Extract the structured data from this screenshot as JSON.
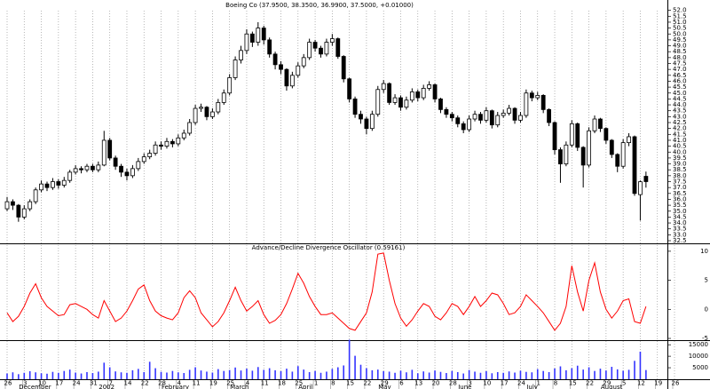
{
  "chart_data": [
    {
      "type": "candlestick",
      "title": "Boeing Co (37.9500, 38.3500, 36.9900, 37.5000, +0.01000)",
      "color_up": "#ffffff",
      "color_down": "#000000",
      "edge_color": "#000000",
      "open": [
        35.2,
        35.8,
        35.5,
        34.5,
        35.2,
        35.8,
        36.8,
        37.3,
        37.0,
        37.5,
        37.2,
        37.6,
        38.3,
        38.6,
        38.5,
        38.8,
        38.5,
        38.9,
        41.0,
        39.5,
        38.8,
        38.3,
        38.0,
        38.6,
        39.2,
        39.6,
        39.9,
        40.6,
        40.5,
        40.9,
        40.7,
        41.2,
        41.6,
        42.5,
        43.7,
        43.8,
        43.0,
        43.4,
        44.2,
        45.0,
        46.3,
        47.8,
        48.6,
        50.0,
        49.3,
        50.5,
        49.5,
        48.3,
        47.4,
        47.0,
        45.6,
        46.5,
        47.3,
        48.0,
        49.3,
        48.8,
        48.3,
        49.3,
        49.6,
        48.1,
        46.2,
        44.5,
        43.2,
        42.8,
        42.0,
        43.2,
        45.3,
        45.8,
        44.2,
        44.6,
        43.8,
        44.4,
        45.1,
        44.6,
        45.4,
        45.7,
        44.5,
        43.6,
        43.2,
        42.9,
        42.4,
        41.9,
        42.8,
        43.2,
        42.7,
        43.5,
        42.3,
        43.1,
        43.3,
        43.7,
        42.7,
        43.1,
        45.0,
        44.6,
        44.8,
        43.6,
        42.5,
        40.2,
        39.0,
        40.6,
        42.4,
        40.4,
        38.9,
        41.8,
        42.8,
        42.0,
        41.0,
        39.8,
        38.8,
        40.8,
        41.3,
        36.4,
        37.95,
        null,
        null,
        null,
        null,
        null
      ],
      "high": [
        36.2,
        36.0,
        35.6,
        35.5,
        36.0,
        37.0,
        37.6,
        37.5,
        37.8,
        37.7,
        37.9,
        38.5,
        38.9,
        38.8,
        39.0,
        39.0,
        39.2,
        41.8,
        41.2,
        39.7,
        39.0,
        38.6,
        38.9,
        39.5,
        39.9,
        40.2,
        40.9,
        40.9,
        41.2,
        41.1,
        41.5,
        41.9,
        42.8,
        44.0,
        44.1,
        43.9,
        43.7,
        44.5,
        45.3,
        46.6,
        48.1,
        49.0,
        50.4,
        50.2,
        51.0,
        50.7,
        49.7,
        48.5,
        47.7,
        47.1,
        46.8,
        47.6,
        48.3,
        49.6,
        49.5,
        49.0,
        49.6,
        50.0,
        49.7,
        48.2,
        46.3,
        44.7,
        43.5,
        43.0,
        43.5,
        45.6,
        46.1,
        45.9,
        44.9,
        44.8,
        44.7,
        45.4,
        45.3,
        45.7,
        46.0,
        45.8,
        44.6,
        43.8,
        43.4,
        43.1,
        42.6,
        43.1,
        43.5,
        43.4,
        43.8,
        43.6,
        43.4,
        43.6,
        44.0,
        43.8,
        43.4,
        45.3,
        45.2,
        45.1,
        44.9,
        43.7,
        42.6,
        40.4,
        40.9,
        42.7,
        42.5,
        40.5,
        42.1,
        43.1,
        42.9,
        42.1,
        41.1,
        39.9,
        41.1,
        41.6,
        41.4,
        37.6,
        38.35,
        null,
        null,
        null,
        null,
        null
      ],
      "low": [
        35.0,
        35.1,
        34.1,
        34.3,
        35.0,
        35.6,
        36.6,
        36.7,
        36.8,
        36.9,
        37.0,
        37.4,
        38.1,
        38.2,
        38.3,
        38.3,
        38.3,
        38.8,
        39.3,
        38.5,
        37.9,
        37.6,
        37.8,
        38.4,
        39.0,
        39.4,
        39.7,
        40.2,
        40.3,
        40.4,
        40.5,
        41.0,
        41.4,
        42.3,
        43.4,
        42.7,
        42.8,
        43.2,
        44.0,
        44.8,
        46.1,
        47.5,
        48.3,
        48.9,
        49.0,
        49.1,
        48.0,
        47.0,
        46.6,
        45.2,
        45.4,
        46.3,
        47.1,
        47.8,
        48.5,
        48.0,
        48.1,
        49.0,
        47.9,
        45.9,
        44.2,
        42.9,
        42.4,
        41.5,
        41.8,
        43.0,
        45.0,
        44.0,
        44.0,
        43.5,
        43.6,
        44.2,
        44.3,
        44.4,
        45.2,
        44.2,
        43.3,
        42.9,
        42.6,
        42.1,
        41.6,
        41.7,
        42.6,
        42.4,
        42.5,
        42.0,
        42.1,
        42.9,
        43.1,
        42.4,
        42.5,
        42.9,
        44.3,
        44.4,
        43.3,
        42.2,
        39.8,
        37.4,
        38.8,
        40.4,
        40.1,
        37.0,
        38.7,
        41.6,
        41.7,
        40.7,
        39.5,
        38.3,
        38.6,
        40.5,
        36.3,
        34.2,
        36.99,
        null,
        null,
        null,
        null,
        null
      ],
      "close": [
        35.8,
        35.5,
        34.5,
        35.2,
        35.8,
        36.8,
        37.3,
        37.0,
        37.5,
        37.2,
        37.6,
        38.3,
        38.6,
        38.5,
        38.8,
        38.5,
        38.9,
        41.0,
        39.5,
        38.8,
        38.3,
        38.0,
        38.6,
        39.2,
        39.6,
        39.9,
        40.6,
        40.5,
        40.9,
        40.7,
        41.2,
        41.6,
        42.5,
        43.7,
        43.8,
        43.0,
        43.4,
        44.2,
        45.0,
        46.3,
        47.8,
        48.6,
        50.0,
        49.3,
        50.5,
        49.5,
        48.3,
        47.4,
        47.0,
        45.6,
        46.5,
        47.3,
        48.0,
        49.3,
        48.8,
        48.3,
        49.3,
        49.6,
        48.1,
        46.2,
        44.5,
        43.2,
        42.8,
        42.0,
        43.2,
        45.3,
        45.8,
        44.2,
        44.6,
        43.8,
        44.4,
        45.1,
        44.6,
        45.4,
        45.7,
        44.5,
        43.6,
        43.2,
        42.9,
        42.4,
        41.9,
        42.8,
        43.2,
        42.7,
        43.5,
        42.3,
        43.1,
        43.3,
        43.7,
        42.7,
        43.1,
        45.0,
        44.6,
        44.8,
        43.6,
        42.5,
        40.2,
        39.0,
        40.6,
        42.4,
        40.4,
        38.9,
        41.8,
        42.8,
        42.0,
        41.0,
        39.8,
        38.8,
        40.8,
        41.3,
        36.5,
        37.49,
        37.5,
        null,
        null,
        null,
        null,
        null
      ],
      "ylim": [
        32.5,
        52.5
      ],
      "yticks": [
        32.5,
        {
          "value": 33,
          "label": "33.0"
        },
        33.5,
        {
          "value": 34,
          "label": "34.0"
        },
        34.5,
        {
          "value": 35,
          "label": "35.0"
        },
        35.5,
        {
          "value": 36,
          "label": "36.0"
        },
        36.5,
        {
          "value": 37,
          "label": "37.0"
        },
        37.5,
        {
          "value": 38,
          "label": "38.0"
        },
        38.5,
        {
          "value": 39,
          "label": "39.0"
        },
        39.5,
        {
          "value": 40,
          "label": "40.0"
        },
        40.5,
        {
          "value": 41,
          "label": "41.0"
        },
        41.5,
        {
          "value": 42,
          "label": "42.0"
        },
        42.5,
        {
          "value": 43,
          "label": "43.0"
        },
        43.5,
        {
          "value": 44,
          "label": "44.0"
        },
        44.5,
        {
          "value": 45,
          "label": "45.0"
        },
        45.5,
        {
          "value": 46,
          "label": "46.0"
        },
        46.5,
        {
          "value": 47,
          "label": "47.0"
        },
        47.5,
        {
          "value": 48,
          "label": "48.0"
        },
        48.5,
        {
          "value": 49,
          "label": "49.0"
        },
        49.5,
        {
          "value": 50,
          "label": "50.0"
        },
        50.5,
        {
          "value": 51,
          "label": "51.0"
        },
        51.5,
        {
          "value": 52,
          "label": "52.0"
        }
      ],
      "grid": true
    },
    {
      "type": "line",
      "title": "Advance/Decline Divergence Oscillator (0.59161)",
      "color": "#ff0000",
      "values": [
        -0.6,
        -2.1,
        -1.2,
        0.5,
        2.8,
        4.4,
        2.0,
        0.5,
        -0.3,
        -1.1,
        -0.9,
        0.8,
        1.0,
        0.5,
        0,
        -0.9,
        -1.5,
        1.5,
        -0.3,
        -2.1,
        -1.5,
        -0.3,
        1.5,
        3.5,
        4.2,
        1.5,
        -0.3,
        -1.1,
        -1.5,
        -1.8,
        -0.6,
        2.0,
        3.2,
        2.0,
        -0.6,
        -1.8,
        -3.0,
        -2.1,
        -0.6,
        1.5,
        3.8,
        1.5,
        -0.3,
        0.5,
        1.5,
        -0.9,
        -2.4,
        -1.9,
        -0.9,
        1.0,
        3.5,
        6.2,
        4.5,
        2.2,
        0.5,
        -0.9,
        -0.9,
        -0.6,
        -1.5,
        -2.4,
        -3.3,
        -3.6,
        -2.1,
        -0.6,
        3.0,
        9.5,
        9.7,
        5.0,
        1.0,
        -1.5,
        -2.9,
        -1.8,
        -0.3,
        1.0,
        0.5,
        -1.2,
        -1.8,
        -0.6,
        1.0,
        0.5,
        -0.9,
        0.5,
        2.2,
        0.5,
        1.5,
        2.8,
        2.5,
        1.0,
        -0.9,
        -0.6,
        0.5,
        2.5,
        1.5,
        0.5,
        -0.6,
        -2.1,
        -3.6,
        -2.4,
        0.5,
        7.5,
        3.0,
        -0.3,
        5.0,
        8.0,
        3.0,
        0,
        -1.5,
        -0.3,
        1.5,
        1.8,
        -2.1,
        -2.4,
        0.5,
        null,
        null,
        null,
        null,
        null
      ],
      "ylim": [
        -5.3,
        10.9
      ],
      "yticks": [
        10,
        5,
        0,
        -5
      ],
      "grid": true
    },
    {
      "type": "bar",
      "color": "#3333ff",
      "values": [
        2500,
        3000,
        2200,
        2800,
        3500,
        3000,
        2600,
        2400,
        3200,
        2800,
        3600,
        4200,
        2900,
        2500,
        3100,
        2700,
        3300,
        7200,
        5200,
        3400,
        3000,
        2800,
        3900,
        4500,
        3100,
        7600,
        4800,
        3200,
        2900,
        3600,
        3000,
        2700,
        4100,
        5200,
        3800,
        3300,
        2900,
        4400,
        3600,
        4000,
        5100,
        3800,
        4600,
        3700,
        5300,
        4100,
        4800,
        3900,
        3500,
        4600,
        3300,
        5700,
        4200,
        3100,
        3600,
        2800,
        3300,
        4500,
        5200,
        6000,
        17200,
        10200,
        6300,
        4800,
        3900,
        4200,
        3500,
        3300,
        2800,
        3700,
        3000,
        4100,
        2600,
        3400,
        2900,
        3800,
        3200,
        2700,
        3600,
        3100,
        2500,
        4000,
        3300,
        2800,
        3500,
        2600,
        3100,
        2800,
        3400,
        2900,
        3700,
        3200,
        3000,
        4400,
        3600,
        3100,
        4700,
        5600,
        3900,
        4800,
        5900,
        4200,
        5200,
        3600,
        4600,
        3800,
        5400,
        4300,
        3700,
        4100,
        8000,
        12000,
        4000,
        null,
        null,
        null,
        null,
        null
      ],
      "ylim": [
        0,
        17000
      ],
      "yticks": [
        15000,
        10000,
        5000
      ],
      "grid": true,
      "categories": [
        "26",
        null,
        null,
        "3",
        null,
        null,
        "10",
        null,
        null,
        "17",
        null,
        null,
        "24",
        null,
        null,
        "31",
        null,
        null,
        "7",
        null,
        null,
        "14",
        null,
        null,
        "22",
        null,
        null,
        "28",
        null,
        null,
        "4",
        null,
        null,
        "11",
        null,
        null,
        "19",
        null,
        null,
        "25",
        null,
        null,
        "4",
        null,
        null,
        "11",
        null,
        null,
        "18",
        null,
        null,
        "25",
        null,
        null,
        "1",
        null,
        null,
        "8",
        null,
        null,
        "15",
        null,
        null,
        "22",
        null,
        null,
        "29",
        null,
        null,
        "6",
        null,
        null,
        "13",
        null,
        null,
        "20",
        null,
        null,
        "28",
        null,
        null,
        "3",
        null,
        null,
        "10",
        null,
        null,
        "17",
        null,
        null,
        "24",
        null,
        null,
        "1",
        null,
        null,
        "8",
        null,
        null,
        "15",
        null,
        null,
        "22",
        null,
        null,
        "29",
        null,
        null,
        "5",
        null,
        null,
        "12",
        null,
        null,
        "19",
        null,
        null,
        "26"
      ],
      "months": [
        null,
        null,
        null,
        "December",
        null,
        null,
        null,
        null,
        null,
        null,
        null,
        null,
        null,
        null,
        null,
        null,
        null,
        "2002",
        null,
        null,
        null,
        null,
        null,
        null,
        null,
        null,
        null,
        null,
        "February",
        null,
        null,
        null,
        null,
        null,
        null,
        null,
        null,
        null,
        null,
        null,
        "March",
        null,
        null,
        null,
        null,
        null,
        null,
        null,
        null,
        null,
        null,
        null,
        "April",
        null,
        null,
        null,
        null,
        null,
        null,
        null,
        null,
        null,
        null,
        null,
        null,
        null,
        "May",
        null,
        null,
        null,
        null,
        null,
        null,
        null,
        null,
        null,
        null,
        null,
        null,
        null,
        "June",
        null,
        null,
        null,
        null,
        null,
        null,
        null,
        null,
        null,
        null,
        null,
        "July",
        null,
        null,
        null,
        null,
        null,
        null,
        null,
        null,
        null,
        null,
        null,
        null,
        "August",
        null,
        null,
        null,
        null,
        null,
        null,
        null,
        null,
        null,
        null,
        null,
        null
      ]
    }
  ]
}
